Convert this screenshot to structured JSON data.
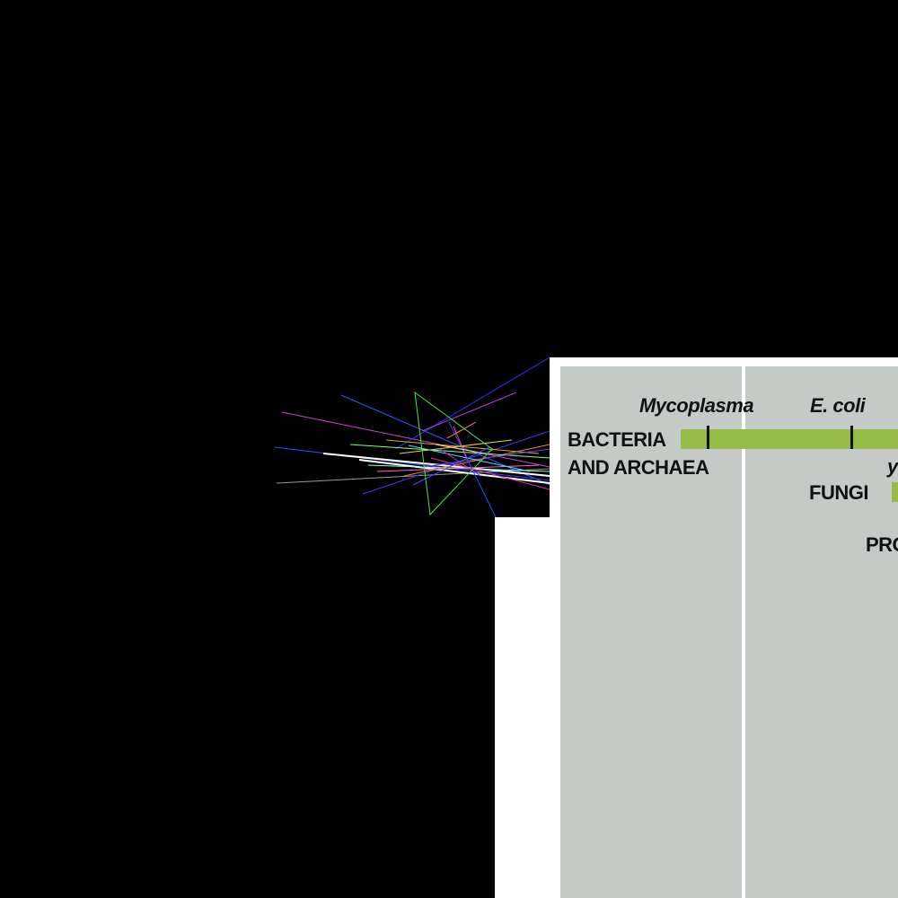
{
  "colors": {
    "background": "#000000",
    "panel": "#c4cbc6",
    "bar": "#97bb47",
    "text": "#111111"
  },
  "figure": {
    "organisms": {
      "mycoplasma": "Mycoplasma",
      "ecoli": "E. coli",
      "yeast_partial": "y"
    },
    "groups": {
      "bacteria_line1": "BACTERIA",
      "bacteria_line2": "AND ARCHAEA",
      "fungi": "FUNGI",
      "protists_partial": "PRO"
    }
  }
}
